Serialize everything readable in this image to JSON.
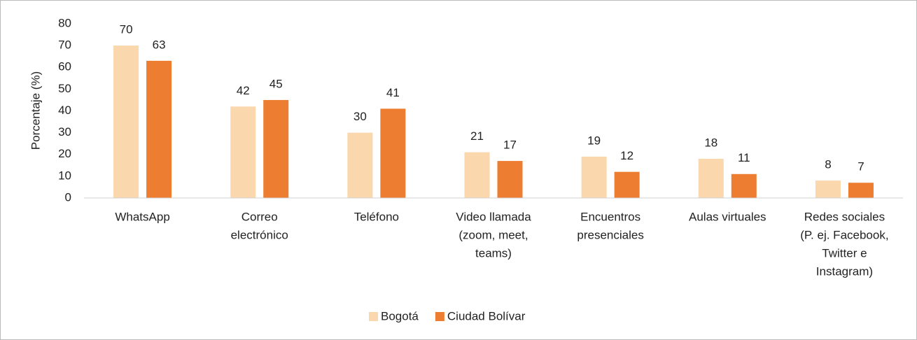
{
  "chart_data": {
    "type": "bar",
    "y_label": "Porcentaje (%)",
    "categories": [
      [
        "WhatsApp"
      ],
      [
        "Correo",
        "electrónico"
      ],
      [
        "Teléfono"
      ],
      [
        "Video llamada",
        "(zoom, meet,",
        "teams)"
      ],
      [
        "Encuentros",
        "presenciales"
      ],
      [
        "Aulas virtuales"
      ],
      [
        "Redes sociales",
        "(P. ej. Facebook,",
        "Twitter e",
        "Instagram)"
      ]
    ],
    "series": [
      {
        "name": "Bogotá",
        "color": "#fad7ac",
        "values": [
          70,
          42,
          30,
          21,
          19,
          18,
          8
        ]
      },
      {
        "name": "Ciudad Bolívar",
        "color": "#ed7d31",
        "values": [
          63,
          45,
          41,
          17,
          12,
          11,
          7
        ]
      }
    ],
    "ylim": [
      0,
      80
    ],
    "yticks": [
      0,
      10,
      20,
      30,
      40,
      50,
      60,
      70,
      80
    ],
    "grid": false,
    "legend": "bottom",
    "data_labels": true
  }
}
